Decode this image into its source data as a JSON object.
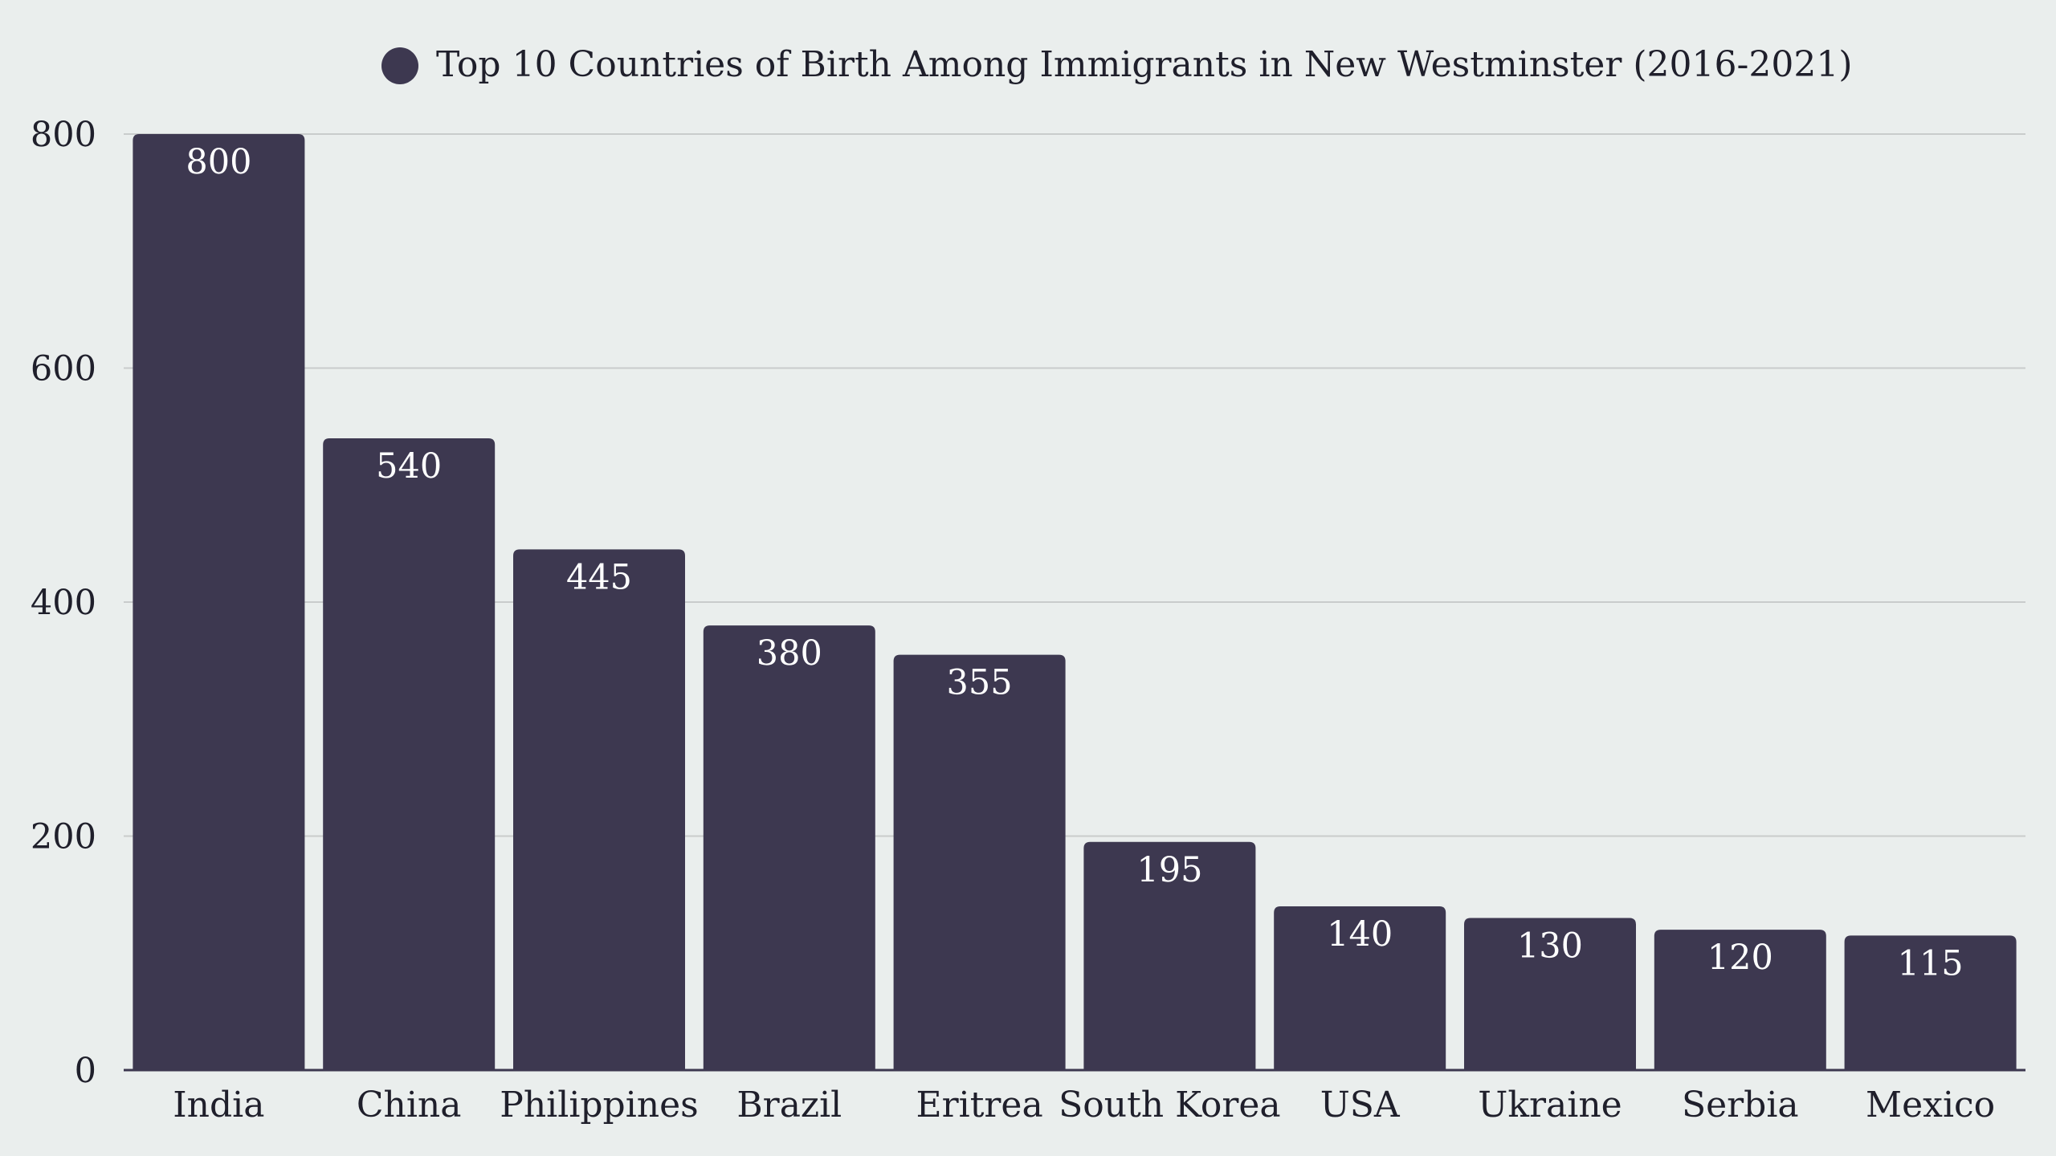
{
  "chart_data": {
    "type": "bar",
    "title": "",
    "xlabel": "",
    "ylabel": "",
    "legend": {
      "placement": "top-center",
      "entries": [
        "Top 10 Countries of Birth Among Immigrants in New Westminster (2016-2021)"
      ]
    },
    "series": [
      {
        "name": "Top 10 Countries of Birth Among Immigrants in New Westminster (2016-2021)",
        "color": "#3d3850",
        "values": [
          800,
          540,
          445,
          380,
          355,
          195,
          140,
          130,
          120,
          115
        ]
      }
    ],
    "categories": [
      "India",
      "China",
      "Philippines",
      "Brazil",
      "Eritrea",
      "South Korea",
      "USA",
      "Ukraine",
      "Serbia",
      "Mexico"
    ],
    "value_labels": [
      "800",
      "540",
      "445",
      "380",
      "355",
      "195",
      "140",
      "130",
      "120",
      "115"
    ],
    "ylim": [
      0,
      800
    ],
    "yticks": [
      0,
      200,
      400,
      600,
      800
    ],
    "ytick_labels": [
      "0",
      "200",
      "400",
      "600",
      "800"
    ],
    "grid": true,
    "colors": {
      "background": "#eaeeed",
      "bar": "#3d3850",
      "gridline": "#c9cccc",
      "axis": "#3d3850",
      "text": "#1f1f2b",
      "value_text": "#ffffff"
    }
  }
}
